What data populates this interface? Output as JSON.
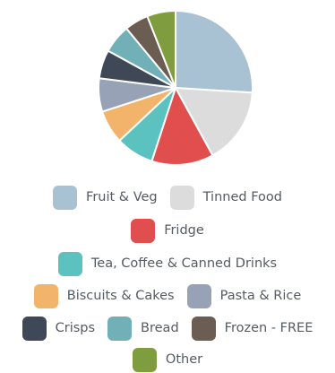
{
  "chart_data": {
    "type": "pie",
    "title": "",
    "slices": [
      {
        "label": "Fruit & Veg",
        "value": 26,
        "color": "#a9c2d3"
      },
      {
        "label": "Tinned Food",
        "value": 16,
        "color": "#dcdcdc"
      },
      {
        "label": "Fridge",
        "value": 13,
        "color": "#e04e4e"
      },
      {
        "label": "Tea, Coffee & Canned Drinks",
        "value": 8,
        "color": "#5cc2c0"
      },
      {
        "label": "Biscuits & Cakes",
        "value": 7,
        "color": "#f2b46a"
      },
      {
        "label": "Pasta & Rice",
        "value": 7,
        "color": "#97a2b6"
      },
      {
        "label": "Crisps",
        "value": 6,
        "color": "#3f4857"
      },
      {
        "label": "Bread",
        "value": 6,
        "color": "#72b0b8"
      },
      {
        "label": "Frozen - FREE",
        "value": 5,
        "color": "#6b5d51"
      },
      {
        "label": "Other",
        "value": 6,
        "color": "#7f9c3e"
      }
    ],
    "legend_position": "bottom",
    "legend_rows": [
      [
        0,
        1
      ],
      [
        2
      ],
      [
        3
      ],
      [
        4,
        5
      ],
      [
        6,
        7,
        8
      ],
      [
        9
      ]
    ]
  }
}
